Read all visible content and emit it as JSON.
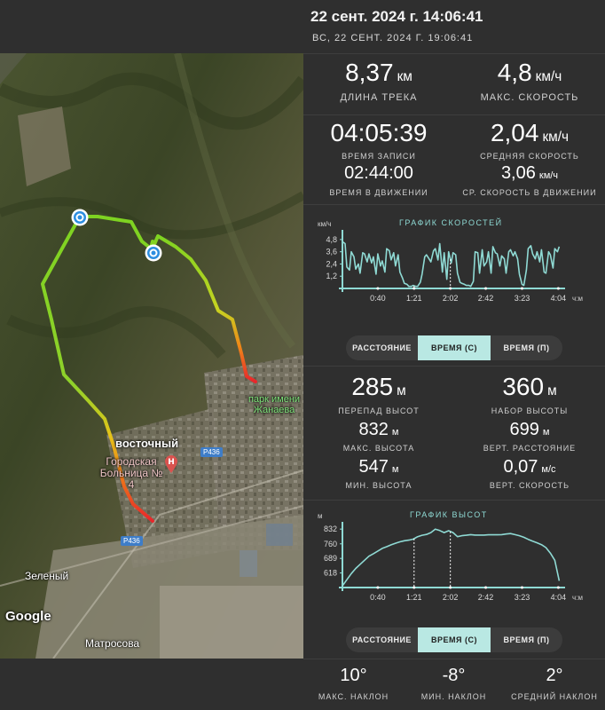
{
  "header": {
    "date_local": "22 сент. 2024 г. 14:06:41",
    "date_end": "ВС, 22 СЕНТ. 2024 Г. 19:06:41"
  },
  "map": {
    "labels": {
      "park": "парк имени Жанаева",
      "district": "восточный",
      "hospital": "Городская Больница № 4",
      "zeleny": "Зеленый",
      "matrosova": "Матросова",
      "google": "Google"
    },
    "road_signs": [
      "P436",
      "P436"
    ],
    "icons": {
      "start_marker": "target-marker-icon",
      "end_marker": "target-marker-icon",
      "hospital": "hospital-pin-icon"
    },
    "colors": {
      "track_green": "#7ed321",
      "track_yellow": "#e6c419",
      "track_red": "#e8262b"
    }
  },
  "stats_top": {
    "track_length": {
      "value": "8,37",
      "unit": "км",
      "label": "ДЛИНА ТРЕКА"
    },
    "max_speed": {
      "value": "4,8",
      "unit": "км/ч",
      "label": "МАКС. СКОРОСТЬ"
    },
    "record_time": {
      "value": "04:05:39",
      "label": "ВРЕМЯ ЗАПИСИ"
    },
    "avg_speed": {
      "value": "2,04",
      "unit": "км/ч",
      "label": "СРЕДНЯЯ СКОРОСТЬ"
    },
    "moving_time": {
      "value": "02:44:00",
      "label": "ВРЕМЯ В ДВИЖЕНИИ"
    },
    "moving_speed": {
      "value": "3,06",
      "unit": "км/ч",
      "label": "СР. СКОРОСТЬ В ДВИЖЕНИИ"
    }
  },
  "speed_chart": {
    "title": "ГРАФИК СКОРОСТЕЙ",
    "y_unit": "км/ч",
    "x_unit": "ч:м"
  },
  "segment": {
    "options": [
      "РАССТОЯНИЕ",
      "ВРЕМЯ (С)",
      "ВРЕМЯ (П)"
    ],
    "selected": "ВРЕМЯ (С)"
  },
  "stats_elev": {
    "elev_diff": {
      "value": "285",
      "unit": "м",
      "label": "ПЕРЕПАД ВЫСОТ"
    },
    "elev_gain": {
      "value": "360",
      "unit": "м",
      "label": "НАБОР ВЫСОТЫ"
    },
    "max_alt": {
      "value": "832",
      "unit": "м",
      "label": "МАКС. ВЫСОТА"
    },
    "vert_dist": {
      "value": "699",
      "unit": "м",
      "label": "ВЕРТ. РАССТОЯНИЕ"
    },
    "min_alt": {
      "value": "547",
      "unit": "м",
      "label": "МИН. ВЫСОТА"
    },
    "vert_speed": {
      "value": "0,07",
      "unit": "м/с",
      "label": "ВЕРТ. СКОРОСТЬ"
    }
  },
  "elev_chart": {
    "title": "ГРАФИК ВЫСОТ",
    "y_unit": "м",
    "x_unit": "ч:м"
  },
  "slopes": {
    "max": {
      "value": "10°",
      "label": "МАКС. НАКЛОН"
    },
    "min": {
      "value": "-8°",
      "label": "МИН. НАКЛОН"
    },
    "avg": {
      "value": "2°",
      "label": "СРЕДНИЙ НАКЛОН"
    }
  },
  "chart_data": [
    {
      "type": "line",
      "title": "ГРАФИК СКОРОСТЕЙ",
      "ylabel": "км/ч",
      "xlabel": "ч:м",
      "y_ticks": [
        "1,2",
        "2,4",
        "3,6",
        "4,8"
      ],
      "x_ticks": [
        "0:40",
        "1:21",
        "2:02",
        "2:42",
        "3:23",
        "4:04"
      ],
      "ylim": [
        0,
        5.4
      ],
      "xlim": [
        0,
        245.65
      ],
      "markers_x": [
        81,
        122
      ],
      "x": [
        0,
        3,
        5,
        8,
        10,
        13,
        15,
        18,
        20,
        23,
        25,
        28,
        30,
        33,
        35,
        38,
        40,
        43,
        45,
        48,
        50,
        53,
        55,
        58,
        60,
        63,
        65,
        68,
        70,
        73,
        75,
        78,
        80,
        83,
        85,
        88,
        90,
        93,
        95,
        98,
        100,
        103,
        105,
        108,
        110,
        113,
        115,
        118,
        120,
        123,
        125,
        128,
        130,
        133,
        135,
        138,
        140,
        143,
        145,
        148,
        150,
        153,
        155,
        158,
        160,
        163,
        165,
        168,
        170,
        173,
        175,
        178,
        180,
        183,
        185,
        188,
        190,
        193,
        195,
        198,
        200,
        203,
        205,
        208,
        210,
        213,
        215,
        218,
        220,
        223,
        225,
        228,
        230,
        233,
        235,
        238,
        240,
        243,
        245
      ],
      "values": [
        4.6,
        4.4,
        2.1,
        1.8,
        3.6,
        3.1,
        1.9,
        2.4,
        1.5,
        3.5,
        3.4,
        2.6,
        3.4,
        2.5,
        3.1,
        1.4,
        3.4,
        2.2,
        2.7,
        1.6,
        3.9,
        3.7,
        2.8,
        3.5,
        2.2,
        3.3,
        1.6,
        1.0,
        0.5,
        0.4,
        0.2,
        0.2,
        0.3,
        0.2,
        0.2,
        0.6,
        1.4,
        3.1,
        3.3,
        2.9,
        2.6,
        3.7,
        3.9,
        2.8,
        4.4,
        1.6,
        3.5,
        0.9,
        3.6,
        2.5,
        3.5,
        3.3,
        1.5,
        0.6,
        0.5,
        0.4,
        0.3,
        0.3,
        0.2,
        0.7,
        3.6,
        3.5,
        1.5,
        3.8,
        2.2,
        2.6,
        3.6,
        1.5,
        4.1,
        3.5,
        3.4,
        2.2,
        3.2,
        2.9,
        1.5,
        3.6,
        3.8,
        3.2,
        3.6,
        2.9,
        1.4,
        0.4,
        0.3,
        1.8,
        3.9,
        4.2,
        3.4,
        2.9,
        3.6,
        2.6,
        3.8,
        1.6,
        1.5,
        3.6,
        3.3,
        2.0,
        3.9,
        3.6,
        4.1
      ]
    },
    {
      "type": "line",
      "title": "ГРАФИК ВЫСОТ",
      "ylabel": "м",
      "xlabel": "ч:м",
      "y_ticks": [
        "618",
        "689",
        "760",
        "832"
      ],
      "x_ticks": [
        "0:40",
        "1:21",
        "2:02",
        "2:42",
        "3:23",
        "4:04"
      ],
      "ylim": [
        547,
        850
      ],
      "xlim": [
        0,
        245.65
      ],
      "markers_x": [
        81,
        122
      ],
      "x": [
        0,
        5,
        10,
        15,
        20,
        25,
        30,
        35,
        40,
        45,
        50,
        55,
        60,
        65,
        70,
        75,
        80,
        85,
        90,
        95,
        100,
        105,
        110,
        115,
        120,
        125,
        130,
        135,
        140,
        145,
        150,
        155,
        160,
        165,
        170,
        175,
        180,
        185,
        190,
        195,
        200,
        205,
        210,
        215,
        220,
        225,
        230,
        235,
        240,
        245
      ],
      "values": [
        555,
        585,
        615,
        640,
        660,
        680,
        700,
        712,
        725,
        738,
        746,
        755,
        763,
        770,
        775,
        778,
        783,
        795,
        802,
        806,
        815,
        832,
        825,
        815,
        824,
        815,
        795,
        800,
        802,
        805,
        803,
        803,
        803,
        804,
        804,
        804,
        805,
        808,
        810,
        805,
        800,
        792,
        782,
        773,
        765,
        756,
        742,
        715,
        680,
        580
      ]
    }
  ]
}
